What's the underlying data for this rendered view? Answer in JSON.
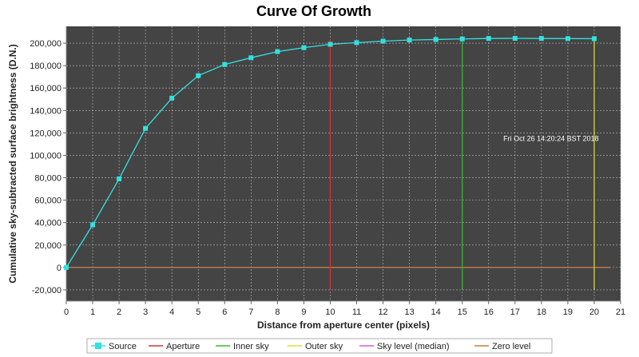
{
  "chart_data": {
    "type": "line",
    "title": "Curve Of Growth",
    "xlabel": "Distance from aperture center (pixels)",
    "ylabel": "Cumulative sky-subtracted surface brightness (D.N.)",
    "xlim": [
      0,
      21
    ],
    "ylim": [
      -30000,
      215000
    ],
    "x_ticks": [
      0,
      1,
      2,
      3,
      4,
      5,
      6,
      7,
      8,
      9,
      10,
      11,
      12,
      13,
      14,
      15,
      16,
      17,
      18,
      19,
      20,
      21
    ],
    "y_ticks": [
      -20000,
      0,
      20000,
      40000,
      60000,
      80000,
      100000,
      120000,
      140000,
      160000,
      180000,
      200000
    ],
    "y_tick_labels": [
      "-20,000",
      "0",
      "20,000",
      "40,000",
      "60,000",
      "80,000",
      "100,000",
      "120,000",
      "140,000",
      "160,000",
      "180,000",
      "200,000"
    ],
    "grid": true,
    "plot_background": "#444444",
    "grid_color": "#bbbbbb",
    "series": [
      {
        "name": "Source",
        "color": "#33e0e0",
        "marker": "square",
        "x": [
          0,
          1,
          2,
          3,
          4,
          5,
          6,
          7,
          8,
          9,
          10,
          11,
          12,
          13,
          14,
          15,
          16,
          17,
          18,
          19,
          20
        ],
        "y": [
          0,
          38000,
          79000,
          124000,
          151000,
          171000,
          181000,
          187000,
          192500,
          196000,
          199000,
          200500,
          201800,
          202800,
          203300,
          203800,
          204200,
          204300,
          204200,
          204100,
          204000
        ]
      }
    ],
    "vertical_lines": [
      {
        "name": "Aperture",
        "x": 10,
        "color": "#e03030"
      },
      {
        "name": "Inner sky",
        "x": 15,
        "color": "#30c030"
      },
      {
        "name": "Outer sky",
        "x": 20,
        "color": "#e0e030"
      }
    ],
    "vertical_line_range": [
      -20000,
      204000
    ],
    "horizontal_lines": [
      {
        "name": "Sky level (median)",
        "y": 0,
        "color": "#d060d0",
        "x_range": [
          0,
          20.6
        ]
      },
      {
        "name": "Zero level",
        "y": 0,
        "color": "#c08040",
        "x_range": [
          0,
          20.6
        ]
      }
    ],
    "annotation": {
      "text": "Fri Oct 26 14:20:24 BST 2018",
      "x": 18,
      "y": 115000
    },
    "legend": {
      "placement": "bottom",
      "entries": [
        {
          "label": "Source",
          "color": "#33e0e0",
          "kind": "marker-line"
        },
        {
          "label": "Aperture",
          "color": "#e03030",
          "kind": "line"
        },
        {
          "label": "Inner sky",
          "color": "#30c030",
          "kind": "line"
        },
        {
          "label": "Outer sky",
          "color": "#e0e030",
          "kind": "line"
        },
        {
          "label": "Sky level (median)",
          "color": "#d060d0",
          "kind": "line"
        },
        {
          "label": "Zero level",
          "color": "#c08040",
          "kind": "line"
        }
      ]
    }
  }
}
